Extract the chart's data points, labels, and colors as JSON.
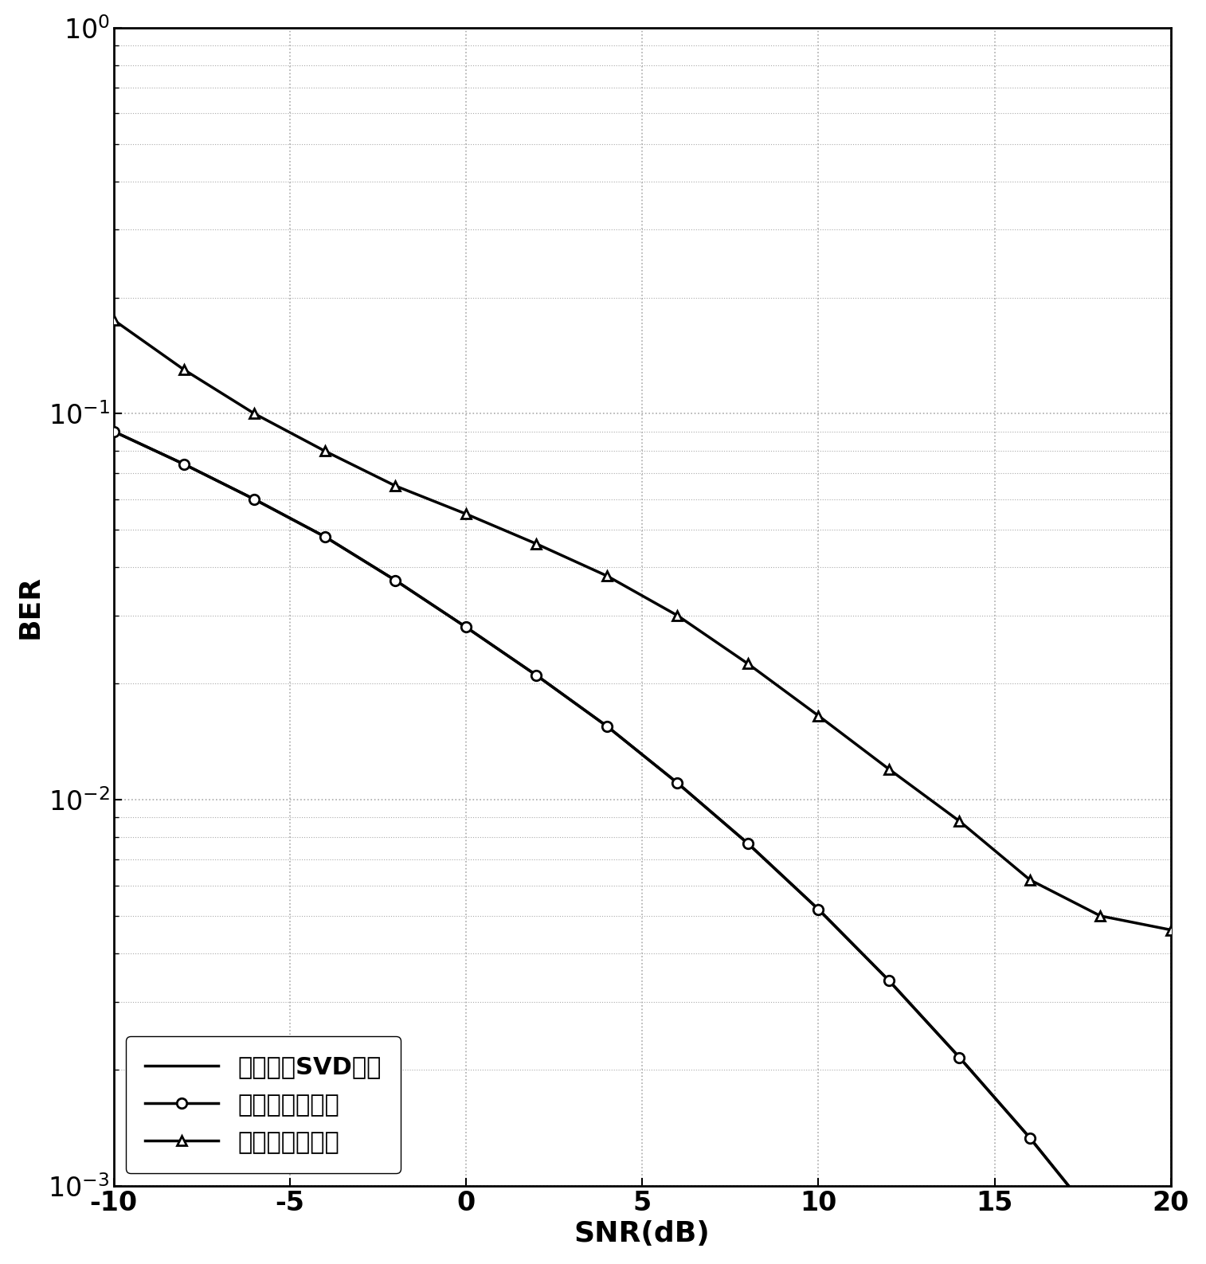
{
  "title": "",
  "xlabel": "SNR(dB)",
  "ylabel": "BER",
  "xlim": [
    -10,
    20
  ],
  "snr_values": [
    -10,
    -8,
    -6,
    -4,
    -2,
    0,
    2,
    4,
    6,
    8,
    10,
    12,
    14,
    16,
    18,
    20
  ],
  "svd_ber": [
    0.09,
    0.074,
    0.06,
    0.048,
    0.037,
    0.028,
    0.021,
    0.0155,
    0.01105,
    0.0077,
    0.0052,
    0.0034,
    0.00215,
    0.00133,
    0.00079,
    0.00046
  ],
  "double_layer_ber": [
    0.09,
    0.074,
    0.06,
    0.048,
    0.037,
    0.028,
    0.021,
    0.0155,
    0.01105,
    0.0077,
    0.0052,
    0.0034,
    0.00215,
    0.00133,
    0.00079,
    0.00046
  ],
  "traditional_ber": [
    0.175,
    0.13,
    0.1,
    0.08,
    0.065,
    0.055,
    0.046,
    0.038,
    0.03,
    0.0225,
    0.0165,
    0.012,
    0.0088,
    0.0062,
    0.005,
    0.0046
  ],
  "line_color": "#000000",
  "background_color": "#ffffff",
  "grid_color": "#aaaaaa",
  "legend_labels": [
    "三维信道SVD方法",
    "双层预编码方法",
    "传统预编码方法"
  ],
  "fontsize_labels": 26,
  "fontsize_ticks": 24,
  "fontsize_legend": 22
}
